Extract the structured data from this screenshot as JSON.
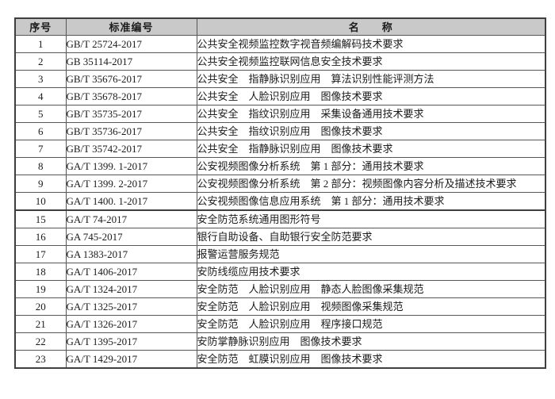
{
  "table": {
    "headers": {
      "seq": "序号",
      "code": "标准编号",
      "name": "名　　称"
    },
    "rows": [
      {
        "seq": "1",
        "code": "GB/T 25724-2017",
        "name": "公共安全视频监控数字视音频编解码技术要求"
      },
      {
        "seq": "2",
        "code": "GB 35114-2017",
        "name": "公共安全视频监控联网信息安全技术要求"
      },
      {
        "seq": "3",
        "code": "GB/T 35676-2017",
        "name": "公共安全　指静脉识别应用　算法识别性能评测方法"
      },
      {
        "seq": "4",
        "code": "GB/T 35678-2017",
        "name": "公共安全　人脸识别应用　图像技术要求"
      },
      {
        "seq": "5",
        "code": "GB/T 35735-2017",
        "name": "公共安全　指纹识别应用　采集设备通用技术要求"
      },
      {
        "seq": "6",
        "code": "GB/T 35736-2017",
        "name": "公共安全　指纹识别应用　图像技术要求"
      },
      {
        "seq": "7",
        "code": "GB/T 35742-2017",
        "name": "公共安全　指静脉识别应用　图像技术要求"
      },
      {
        "seq": "8",
        "code": "GA/T 1399. 1-2017",
        "name": "公安视频图像分析系统　第 1 部分：通用技术要求"
      },
      {
        "seq": "9",
        "code": "GA/T 1399. 2-2017",
        "name": "公安视频图像分析系统　第 2 部分：视频图像内容分析及描述技术要求"
      },
      {
        "seq": "10",
        "code": "GA/T 1400. 1-2017",
        "name": "公安视频图像信息应用系统　第 1 部分：通用技术要求"
      },
      {
        "seq": "15",
        "code": "GA/T 74-2017",
        "name": "安全防范系统通用图形符号"
      },
      {
        "seq": "16",
        "code": "GA 745-2017",
        "name": "银行自助设备、自助银行安全防范要求"
      },
      {
        "seq": "17",
        "code": "GA 1383-2017",
        "name": "报警运营服务规范"
      },
      {
        "seq": "18",
        "code": "GA/T 1406-2017",
        "name": "安防线缆应用技术要求"
      },
      {
        "seq": "19",
        "code": "GA/T 1324-2017",
        "name": "安全防范　人脸识别应用　静态人脸图像采集规范"
      },
      {
        "seq": "20",
        "code": "GA/T 1325-2017",
        "name": "安全防范　人脸识别应用　视频图像采集规范"
      },
      {
        "seq": "21",
        "code": "GA/T 1326-2017",
        "name": "安全防范　人脸识别应用　程序接口规范"
      },
      {
        "seq": "22",
        "code": "GA/T 1395-2017",
        "name": "安防掌静脉识别应用　图像技术要求"
      },
      {
        "seq": "23",
        "code": "GA/T 1429-2017",
        "name": "安全防范　虹膜识别应用　图像技术要求"
      }
    ],
    "colors": {
      "header_bg": "#c9c9c9",
      "border_outer": "#3f3f3f",
      "border_inner": "#575757",
      "text": "#1b1b1b"
    }
  }
}
